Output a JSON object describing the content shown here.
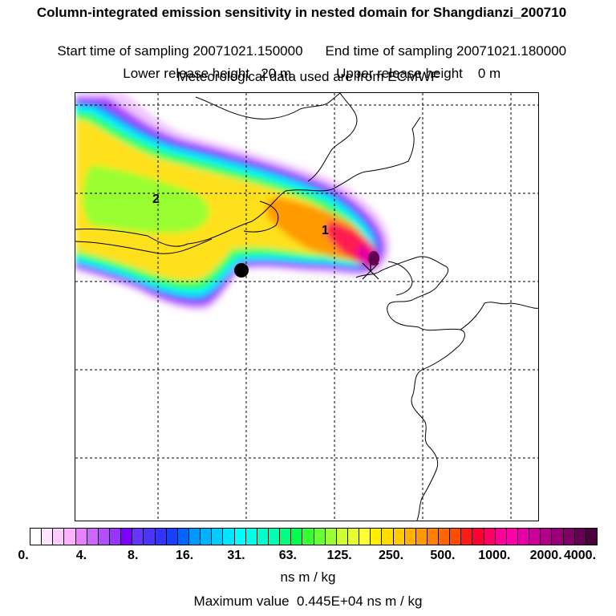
{
  "header": {
    "title": "Column-integrated emission sensitivity in nested domain for Shangdianzi_200710",
    "start_label": "Start time of sampling",
    "start_value": "20071021.150000",
    "end_label": "End time of sampling",
    "end_value": "20071021.180000",
    "lower_label": "Lower release height",
    "lower_value": "20 m",
    "upper_label": "Upper release height",
    "upper_value": "0 m",
    "met_line": "Meteorological data used are from ECMWF"
  },
  "map": {
    "markers": [
      {
        "label": "1"
      },
      {
        "label": "2"
      }
    ],
    "receptor_symbol": "filled-circle"
  },
  "legend": {
    "tick_labels": [
      "0.",
      "4.",
      "8.",
      "16.",
      "31.",
      "63.",
      "125.",
      "250.",
      "500.",
      "1000.",
      "2000.",
      "4000."
    ],
    "colors": [
      "#ffffff",
      "#ffe6ff",
      "#ffccff",
      "#ffb3ff",
      "#e680ff",
      "#cc66ff",
      "#b34dff",
      "#9933ff",
      "#8000ff",
      "#6633ff",
      "#4d33ff",
      "#3333ff",
      "#1a40ff",
      "#0066ff",
      "#0099ff",
      "#00b3ff",
      "#00ccff",
      "#00e6ff",
      "#00ffff",
      "#00ffe6",
      "#00ffcc",
      "#00ffb3",
      "#00ff80",
      "#00ff4d",
      "#33ff33",
      "#66ff33",
      "#99ff33",
      "#ccff33",
      "#e6ff33",
      "#ffff33",
      "#ffee00",
      "#ffdd00",
      "#ffcc00",
      "#ffb300",
      "#ff9900",
      "#ff8000",
      "#ff6600",
      "#ff4d00",
      "#ff1a1a",
      "#ff0033",
      "#ff0066",
      "#ff0099",
      "#ff00aa",
      "#e600aa",
      "#cc0099",
      "#b30088",
      "#990077",
      "#800066",
      "#660055",
      "#4d0040"
    ],
    "units": "ns m / kg",
    "max_label": "Maximum value",
    "max_value": "0.445E+04",
    "max_units": "ns m / kg"
  }
}
